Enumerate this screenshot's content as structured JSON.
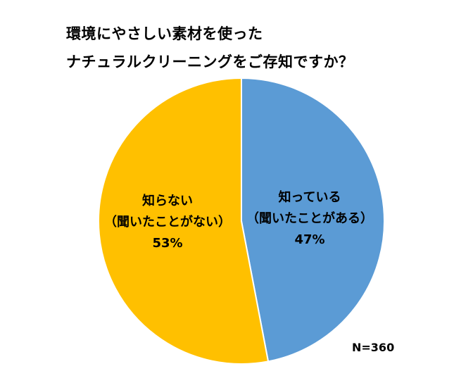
{
  "chart_data": {
    "type": "pie",
    "title": [
      "環境にやさしい素材を使った",
      "ナチュラルクリーニングをご存知ですか？"
    ],
    "slices": [
      {
        "label_lines": [
          "知っている",
          "（聞いたことがある）"
        ],
        "value": 47,
        "value_label": "47%",
        "color": "#5b9bd5"
      },
      {
        "label_lines": [
          "知らない",
          "（聞いたことがない）"
        ],
        "value": 53,
        "value_label": "53%",
        "color": "#ffc000"
      }
    ],
    "start": "12 o'clock",
    "direction": "clockwise",
    "legend": "none",
    "note": "N=360"
  }
}
